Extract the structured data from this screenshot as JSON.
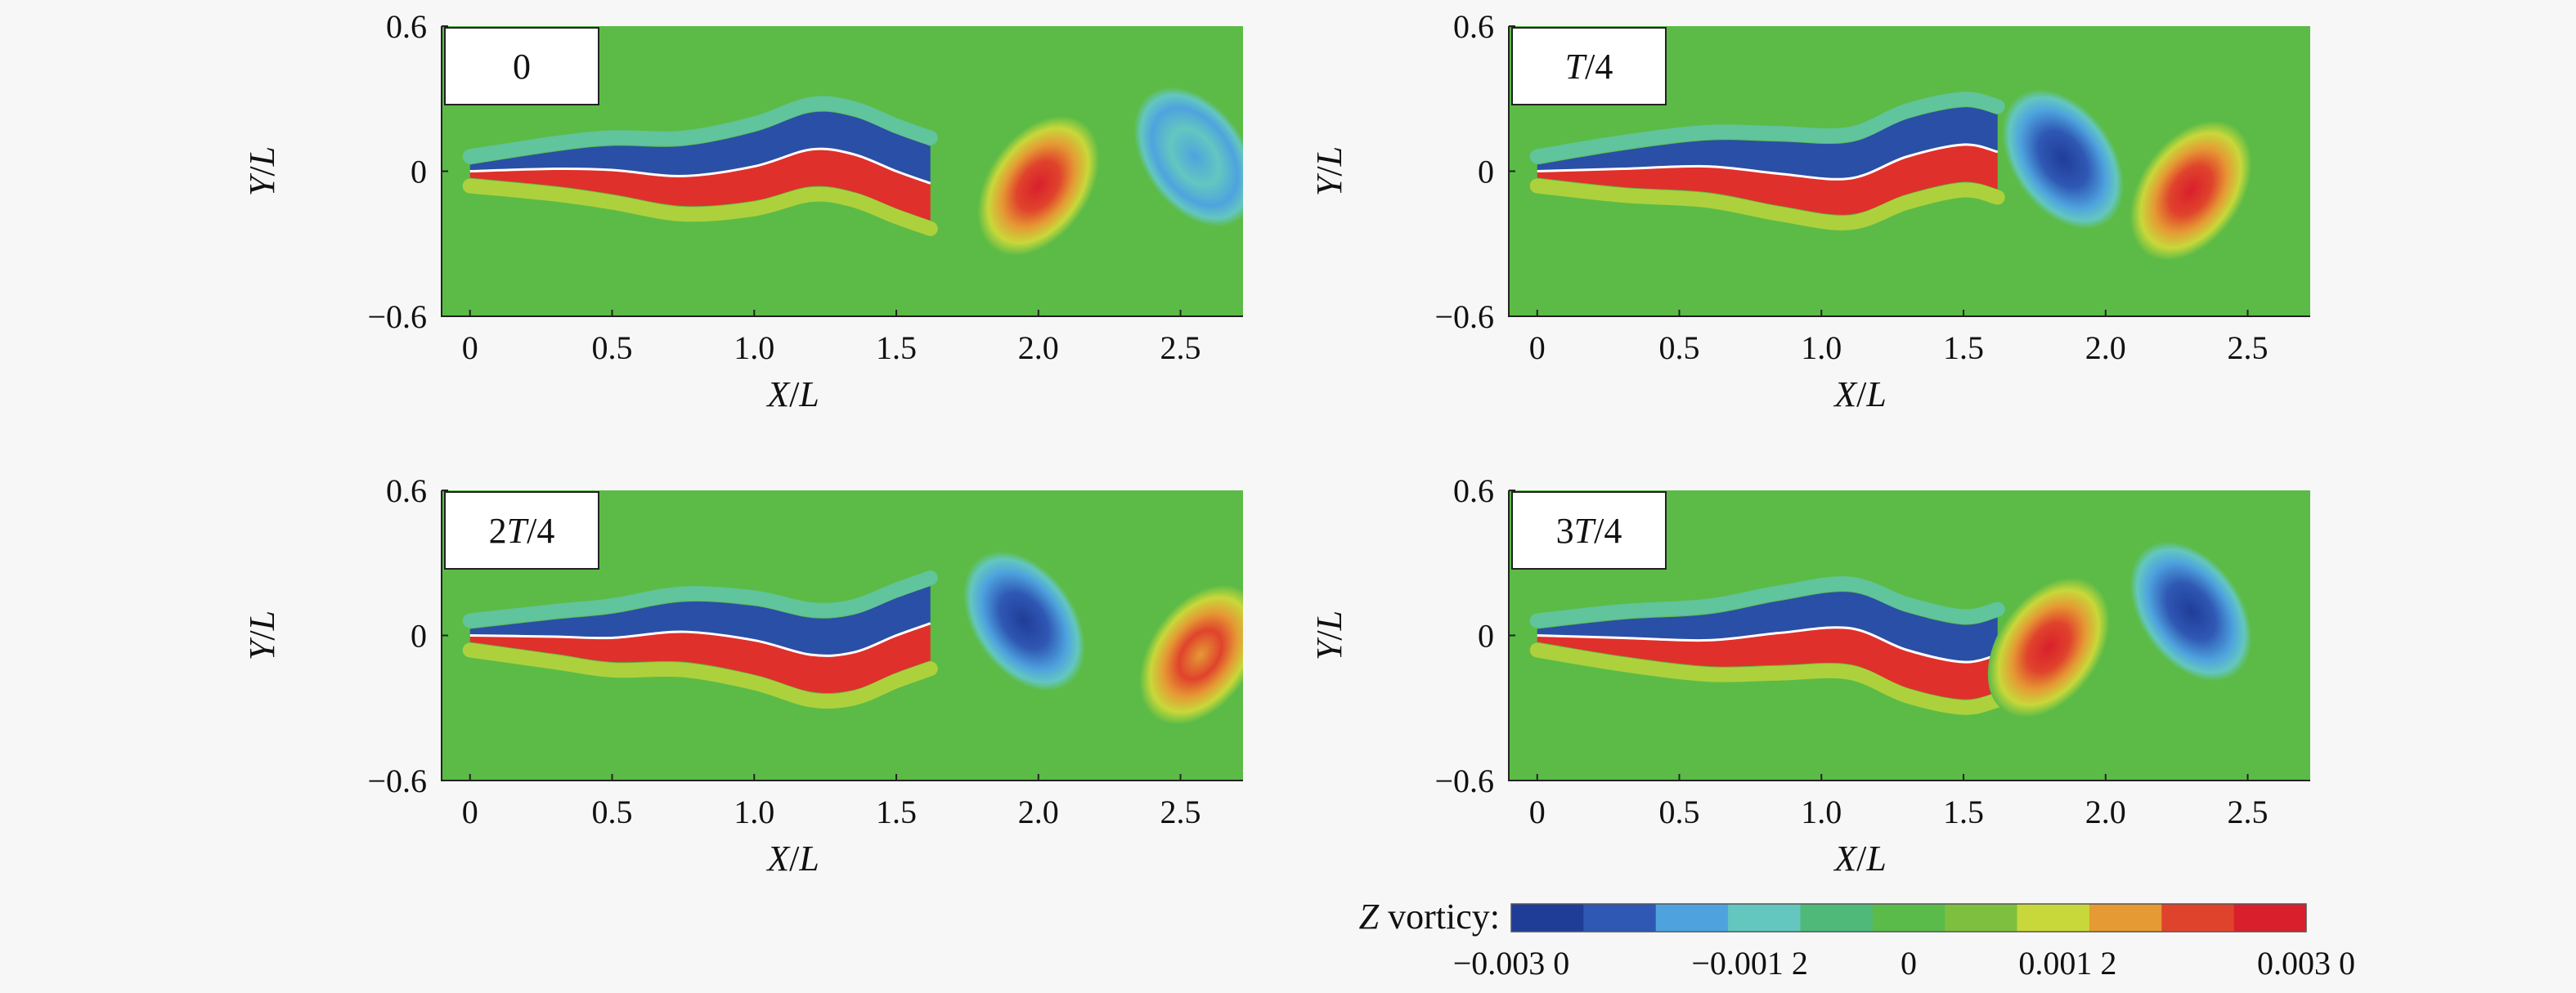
{
  "chart_data": [
    {
      "type": "heatmap",
      "panel_label": "0",
      "xlabel": "X/L",
      "ylabel": "Y/L",
      "xlim": [
        -0.1,
        2.72
      ],
      "ylim": [
        -0.6,
        0.6
      ],
      "xticks": [
        0,
        0.5,
        1.0,
        1.5,
        2.0,
        2.5
      ],
      "xtick_labels": [
        "0",
        "0.5",
        "1.0",
        "1.5",
        "2.0",
        "2.5"
      ],
      "yticks": [
        0.6,
        0,
        -0.6
      ],
      "ytick_labels": [
        "0.6",
        "0",
        "−0.6"
      ],
      "body_midline": [
        [
          0,
          0
        ],
        [
          0.3,
          0.01
        ],
        [
          0.5,
          0.005
        ],
        [
          0.75,
          -0.02
        ],
        [
          1.0,
          0.02
        ],
        [
          1.2,
          0.09
        ],
        [
          1.35,
          0.07
        ],
        [
          1.5,
          0.0
        ],
        [
          1.62,
          -0.05
        ]
      ],
      "vortices": [
        {
          "sign": "positive",
          "x": 2.0,
          "y": -0.06,
          "peak": 0.003
        },
        {
          "sign": "negative",
          "x": 2.55,
          "y": 0.06,
          "peak": -0.0012
        }
      ]
    },
    {
      "type": "heatmap",
      "panel_label": "T/4",
      "xlabel": "X/L",
      "ylabel": "Y/L",
      "xlim": [
        -0.1,
        2.72
      ],
      "ylim": [
        -0.6,
        0.6
      ],
      "xticks": [
        0,
        0.5,
        1.0,
        1.5,
        2.0,
        2.5
      ],
      "xtick_labels": [
        "0",
        "0.5",
        "1.0",
        "1.5",
        "2.0",
        "2.5"
      ],
      "yticks": [
        0.6,
        0,
        -0.6
      ],
      "ytick_labels": [
        "0.6",
        "0",
        "−0.6"
      ],
      "body_midline": [
        [
          0,
          0
        ],
        [
          0.3,
          0.01
        ],
        [
          0.6,
          0.02
        ],
        [
          0.85,
          -0.01
        ],
        [
          1.1,
          -0.03
        ],
        [
          1.3,
          0.06
        ],
        [
          1.5,
          0.11
        ],
        [
          1.62,
          0.08
        ]
      ],
      "vortices": [
        {
          "sign": "negative",
          "x": 1.85,
          "y": 0.05,
          "peak": -0.003
        },
        {
          "sign": "positive",
          "x": 2.3,
          "y": -0.08,
          "peak": 0.0028
        }
      ]
    },
    {
      "type": "heatmap",
      "panel_label": "2T/4",
      "xlabel": "X/L",
      "ylabel": "Y/L",
      "xlim": [
        -0.1,
        2.72
      ],
      "ylim": [
        -0.6,
        0.6
      ],
      "xticks": [
        0,
        0.5,
        1.0,
        1.5,
        2.0,
        2.5
      ],
      "xtick_labels": [
        "0",
        "0.5",
        "1.0",
        "1.5",
        "2.0",
        "2.5"
      ],
      "yticks": [
        0.6,
        0,
        -0.6
      ],
      "ytick_labels": [
        "0.6",
        "0",
        "−0.6"
      ],
      "body_midline": [
        [
          0,
          0
        ],
        [
          0.3,
          -0.005
        ],
        [
          0.5,
          -0.01
        ],
        [
          0.75,
          0.015
        ],
        [
          1.0,
          -0.02
        ],
        [
          1.2,
          -0.08
        ],
        [
          1.35,
          -0.07
        ],
        [
          1.5,
          0.0
        ],
        [
          1.62,
          0.05
        ]
      ],
      "vortices": [
        {
          "sign": "negative",
          "x": 1.95,
          "y": 0.06,
          "peak": -0.003
        },
        {
          "sign": "positive",
          "x": 2.57,
          "y": -0.08,
          "peak": 0.0025
        }
      ]
    },
    {
      "type": "heatmap",
      "panel_label": "3T/4",
      "xlabel": "X/L",
      "ylabel": "Y/L",
      "xlim": [
        -0.1,
        2.72
      ],
      "ylim": [
        -0.6,
        0.6
      ],
      "xticks": [
        0,
        0.5,
        1.0,
        1.5,
        2.0,
        2.5
      ],
      "xtick_labels": [
        "0",
        "0.5",
        "1.0",
        "1.5",
        "2.0",
        "2.5"
      ],
      "yticks": [
        0.6,
        0,
        -0.6
      ],
      "ytick_labels": [
        "0.6",
        "0",
        "−0.6"
      ],
      "body_midline": [
        [
          0,
          0
        ],
        [
          0.3,
          -0.01
        ],
        [
          0.6,
          -0.02
        ],
        [
          0.85,
          0.01
        ],
        [
          1.1,
          0.03
        ],
        [
          1.3,
          -0.06
        ],
        [
          1.5,
          -0.11
        ],
        [
          1.62,
          -0.08
        ]
      ],
      "vortices": [
        {
          "sign": "positive",
          "x": 1.8,
          "y": -0.05,
          "peak": 0.003
        },
        {
          "sign": "negative",
          "x": 2.3,
          "y": 0.1,
          "peak": -0.0028
        }
      ]
    }
  ],
  "colorbar": {
    "label": "Z vorticy:",
    "range": [
      -0.003,
      0.003
    ],
    "colors": [
      "#1f3d97",
      "#2f58b4",
      "#4ea3de",
      "#63c7c0",
      "#4fb97a",
      "#5bbb4a",
      "#7fbf3f",
      "#c8d83a",
      "#e59a34",
      "#e0432c",
      "#d91f2c"
    ],
    "tick_labels": [
      "−0.003 0",
      "−0.001 2",
      "0",
      "0.001 2",
      "0.003 0"
    ],
    "tick_values": [
      -0.003,
      -0.0012,
      0,
      0.0012,
      0.003
    ]
  },
  "colors": {
    "background_field": "#5cbb46",
    "positive": "#e0302b",
    "negative": "#2a4fa6",
    "midline": "#ffffff"
  }
}
